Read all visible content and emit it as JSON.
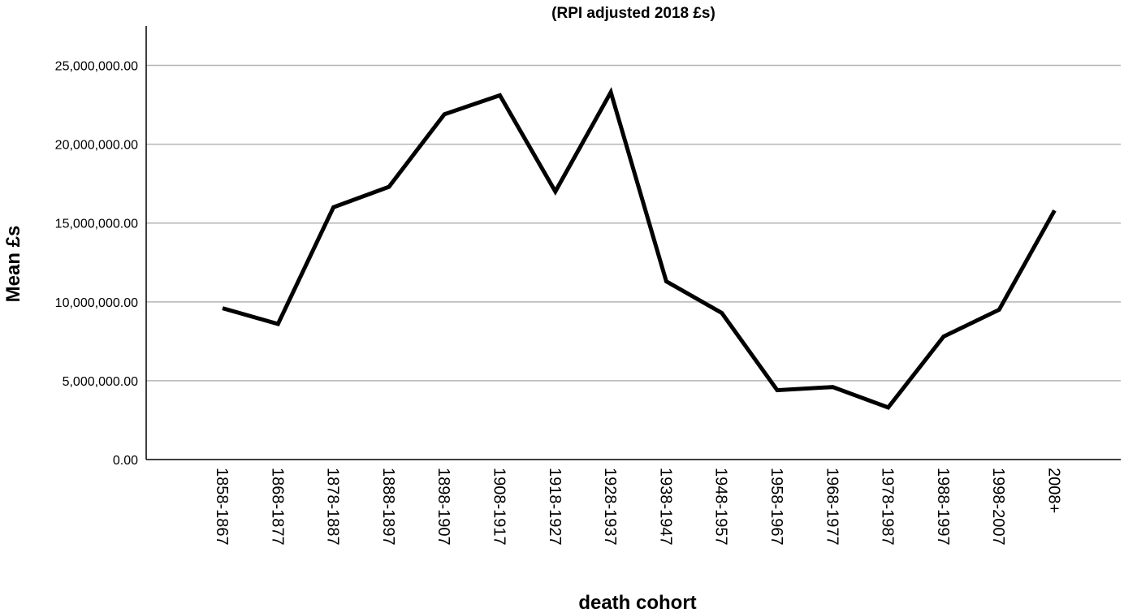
{
  "chart_data": {
    "type": "line",
    "title": "(RPI adjusted 2018 £s)",
    "xlabel": "death cohort",
    "ylabel": "Mean £s",
    "categories": [
      "1858-1867",
      "1868-1877",
      "1878-1887",
      "1888-1897",
      "1898-1907",
      "1908-1917",
      "1918-1927",
      "1928-1937",
      "1938-1947",
      "1948-1957",
      "1958-1967",
      "1968-1977",
      "1978-1987",
      "1988-1997",
      "1998-2007",
      "2008+"
    ],
    "series": [
      {
        "values": [
          9600000,
          8600000,
          16000000,
          17300000,
          21900000,
          23100000,
          17000000,
          23300000,
          11300000,
          9300000,
          4400000,
          4600000,
          3300000,
          7800000,
          9500000,
          15800000
        ]
      }
    ],
    "ylim": [
      0,
      27500000
    ],
    "yticks": [
      0,
      5000000,
      10000000,
      15000000,
      20000000,
      25000000
    ],
    "ytick_labels": [
      "0.00",
      "5,000,000.00",
      "10,000,000.00",
      "15,000,000.00",
      "20,000,000.00",
      "25,000,000.00"
    ],
    "grid": true,
    "legend": "none",
    "line_color": "#000000",
    "grid_color": "#b5b5b5"
  }
}
